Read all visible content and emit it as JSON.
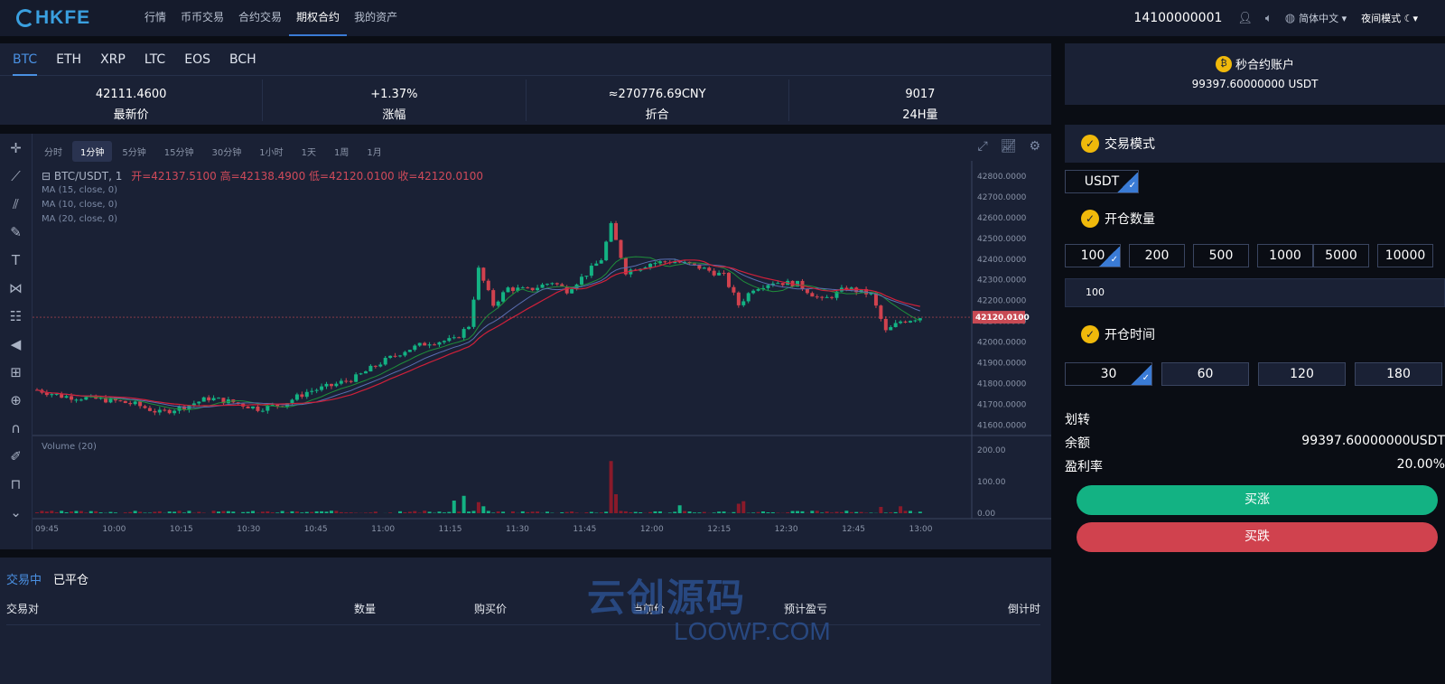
{
  "header": {
    "logo": "HKFE",
    "nav": [
      "行情",
      "币币交易",
      "合约交易",
      "期权合约",
      "我的资产"
    ],
    "active_nav": 3,
    "phone": "14100000001",
    "language": "简体中文",
    "night_mode": "夜间模式"
  },
  "coins": {
    "tabs": [
      "BTC",
      "ETH",
      "XRP",
      "LTC",
      "EOS",
      "BCH"
    ],
    "active": 0
  },
  "stats": [
    {
      "value": "42111.4600",
      "label": "最新价"
    },
    {
      "value": "+1.37%",
      "label": "涨幅"
    },
    {
      "value": "≈270776.69CNY",
      "label": "折合"
    },
    {
      "value": "9017",
      "label": "24H量"
    }
  ],
  "chart": {
    "intervals": [
      "分时",
      "1分钟",
      "5分钟",
      "15分钟",
      "30分钟",
      "1小时",
      "1天",
      "1周",
      "1月"
    ],
    "active_interval": 1,
    "pair_label": "BTC/USDT, 1",
    "ohlc": "开=42137.5100 高=42138.4900 低=42120.0100 收=42120.0100",
    "ma_lines": [
      "MA (15, close, 0)",
      "MA (10, close, 0)",
      "MA (20, close, 0)"
    ],
    "volume_label": "Volume (20)",
    "current_price_label": "42120.0100"
  },
  "chart_data": {
    "type": "line",
    "title": "BTC/USDT, 1",
    "x_ticks": [
      "09:45",
      "10:00",
      "10:15",
      "10:30",
      "10:45",
      "11:00",
      "11:15",
      "11:30",
      "11:45",
      "12:00",
      "12:15",
      "12:30",
      "12:45",
      "13:00"
    ],
    "y_ticks": [
      "42800.0000",
      "42700.0000",
      "42600.0000",
      "42500.0000",
      "42400.0000",
      "42300.0000",
      "42200.0000",
      "42100.0000",
      "42000.0000",
      "41900.0000",
      "41800.0000",
      "41700.0000",
      "41600.0000"
    ],
    "ylim": [
      41550,
      42830
    ],
    "volume_ticks": [
      "200.00",
      "100.00",
      "0.00"
    ],
    "volume_ylim": [
      0,
      200
    ],
    "price_series": [
      {
        "t": 0,
        "v": 41770
      },
      {
        "t": 5,
        "v": 41740
      },
      {
        "t": 10,
        "v": 41730
      },
      {
        "t": 15,
        "v": 41720
      },
      {
        "t": 20,
        "v": 41700
      },
      {
        "t": 25,
        "v": 41660
      },
      {
        "t": 30,
        "v": 41690
      },
      {
        "t": 35,
        "v": 41730
      },
      {
        "t": 40,
        "v": 41710
      },
      {
        "t": 45,
        "v": 41680
      },
      {
        "t": 50,
        "v": 41700
      },
      {
        "t": 55,
        "v": 41760
      },
      {
        "t": 60,
        "v": 41790
      },
      {
        "t": 65,
        "v": 41830
      },
      {
        "t": 70,
        "v": 41900
      },
      {
        "t": 75,
        "v": 41960
      },
      {
        "t": 80,
        "v": 42000
      },
      {
        "t": 85,
        "v": 42010
      },
      {
        "t": 88,
        "v": 42080
      },
      {
        "t": 90,
        "v": 42350
      },
      {
        "t": 93,
        "v": 42180
      },
      {
        "t": 96,
        "v": 42260
      },
      {
        "t": 100,
        "v": 42250
      },
      {
        "t": 105,
        "v": 42290
      },
      {
        "t": 108,
        "v": 42250
      },
      {
        "t": 112,
        "v": 42330
      },
      {
        "t": 115,
        "v": 42400
      },
      {
        "t": 117,
        "v": 42560
      },
      {
        "t": 120,
        "v": 42340
      },
      {
        "t": 125,
        "v": 42380
      },
      {
        "t": 130,
        "v": 42390
      },
      {
        "t": 135,
        "v": 42360
      },
      {
        "t": 140,
        "v": 42320
      },
      {
        "t": 143,
        "v": 42180
      },
      {
        "t": 146,
        "v": 42260
      },
      {
        "t": 150,
        "v": 42290
      },
      {
        "t": 155,
        "v": 42280
      },
      {
        "t": 160,
        "v": 42200
      },
      {
        "t": 165,
        "v": 42260
      },
      {
        "t": 170,
        "v": 42230
      },
      {
        "t": 173,
        "v": 42050
      },
      {
        "t": 176,
        "v": 42100
      },
      {
        "t": 180,
        "v": 42120
      }
    ],
    "volume_series": [
      {
        "t": 85,
        "v": 40
      },
      {
        "t": 87,
        "v": 55
      },
      {
        "t": 90,
        "v": 35
      },
      {
        "t": 91,
        "v": 22
      },
      {
        "t": 117,
        "v": 165
      },
      {
        "t": 118,
        "v": 60
      },
      {
        "t": 131,
        "v": 25
      },
      {
        "t": 143,
        "v": 30
      },
      {
        "t": 144,
        "v": 38
      },
      {
        "t": 172,
        "v": 20
      },
      {
        "t": 176,
        "v": 22
      }
    ]
  },
  "orders": {
    "tabs": [
      "交易中",
      "已平仓"
    ],
    "active": 0,
    "columns": [
      "交易对",
      "数量",
      "购买价",
      "当前价",
      "预计盈亏",
      "倒计时"
    ]
  },
  "watermark": {
    "cn": "云创源码",
    "en": "LOOWP.COM"
  },
  "account": {
    "title": "秒合约账户",
    "balance": "99397.60000000 USDT"
  },
  "trade": {
    "mode_label": "交易模式",
    "currency": "USDT",
    "qty_label": "开仓数量",
    "qty_options": [
      "100",
      "200",
      "500",
      "1000",
      "5000",
      "10000"
    ],
    "qty_value": "100",
    "time_label": "开仓时间",
    "time_options": [
      "30",
      "60",
      "120",
      "180"
    ],
    "transfer_label": "划转",
    "balance_label": "余额",
    "balance_value": "99397.60000000USDT",
    "profit_label": "盈利率",
    "profit_value": "20.00%",
    "buy_up": "买涨",
    "buy_down": "买跌"
  },
  "colors": {
    "up": "#13b283",
    "down": "#d0424e",
    "accent": "#4a90e2",
    "gold": "#f0b90b"
  }
}
